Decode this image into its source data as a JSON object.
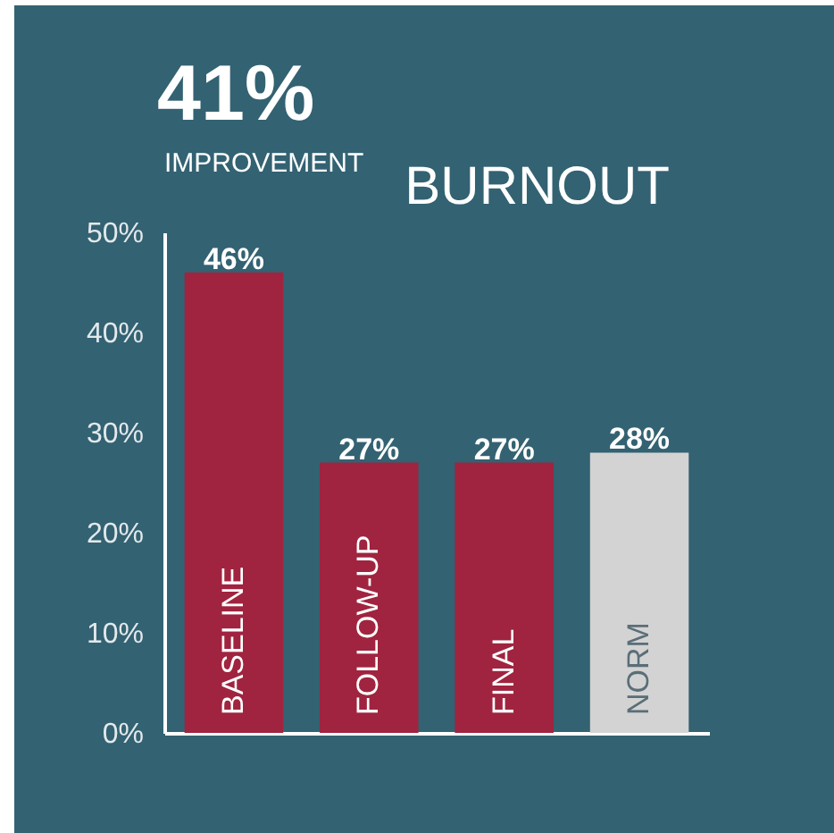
{
  "chart_data": {
    "type": "bar",
    "title": "BURNOUT",
    "annotations": [
      "41%",
      "IMPROVEMENT"
    ],
    "categories": [
      "BASELINE",
      "FOLLOW-UP",
      "FINAL",
      "NORM"
    ],
    "values": [
      46,
      27,
      27,
      28
    ],
    "value_labels": [
      "46%",
      "27%",
      "27%",
      "28%"
    ],
    "colors": [
      "#a0243f",
      "#a0243f",
      "#a0243f",
      "#d3d3d3"
    ],
    "ylim": [
      0,
      50
    ],
    "yticks": [
      {
        "value": 0,
        "label": "0%"
      },
      {
        "value": 10,
        "label": "10%"
      },
      {
        "value": 20,
        "label": "20%"
      },
      {
        "value": 30,
        "label": "30%"
      },
      {
        "value": 40,
        "label": "40%"
      },
      {
        "value": 50,
        "label": "50%"
      }
    ]
  }
}
